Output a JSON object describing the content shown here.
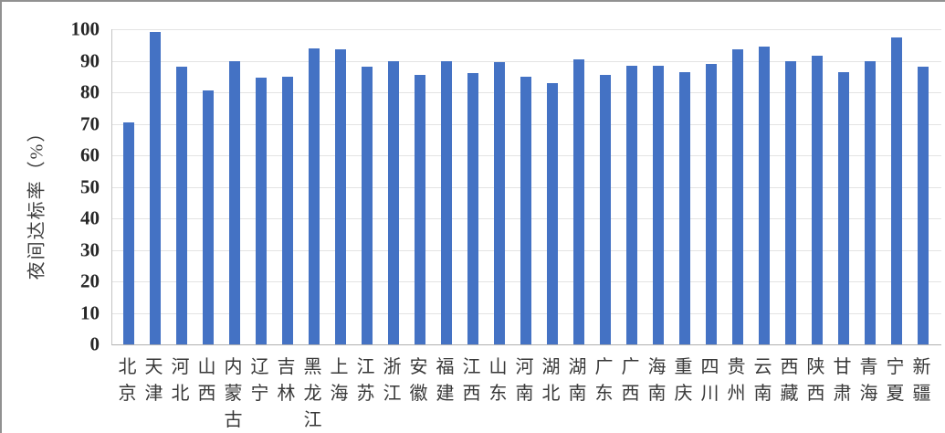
{
  "colors": {
    "bar": "#4472C4",
    "gridline": "#E3E3E3",
    "axis_line": "#B0B0B0",
    "tick_text": "#262626",
    "label_text": "#383838",
    "frame_border": "#919191",
    "background": "#FFFFFF"
  },
  "chart_data": {
    "type": "bar",
    "title": "",
    "xlabel": "",
    "ylabel": "夜间达标率（%）",
    "ylim": [
      0,
      100
    ],
    "yticks": [
      0,
      10,
      20,
      30,
      40,
      50,
      60,
      70,
      80,
      90,
      100
    ],
    "grid": true,
    "legend_position": "none",
    "categories": [
      "北京",
      "天津",
      "河北",
      "山西",
      "内蒙古",
      "辽宁",
      "吉林",
      "黑龙江",
      "上海",
      "江苏",
      "浙江",
      "安徽",
      "福建",
      "江西",
      "山东",
      "河南",
      "湖北",
      "湖南",
      "广东",
      "广西",
      "海南",
      "重庆",
      "四川",
      "贵州",
      "云南",
      "西藏",
      "陕西",
      "甘肃",
      "青海",
      "宁夏",
      "新疆"
    ],
    "values": [
      70.5,
      99,
      88,
      80.5,
      90,
      84.5,
      85,
      94,
      93.5,
      88,
      90,
      85.5,
      90,
      86,
      89.5,
      85,
      83,
      90.5,
      85.5,
      88.5,
      88.5,
      86.5,
      89,
      93.5,
      94.5,
      90,
      91.5,
      86.5,
      90,
      97.5,
      88
    ]
  }
}
